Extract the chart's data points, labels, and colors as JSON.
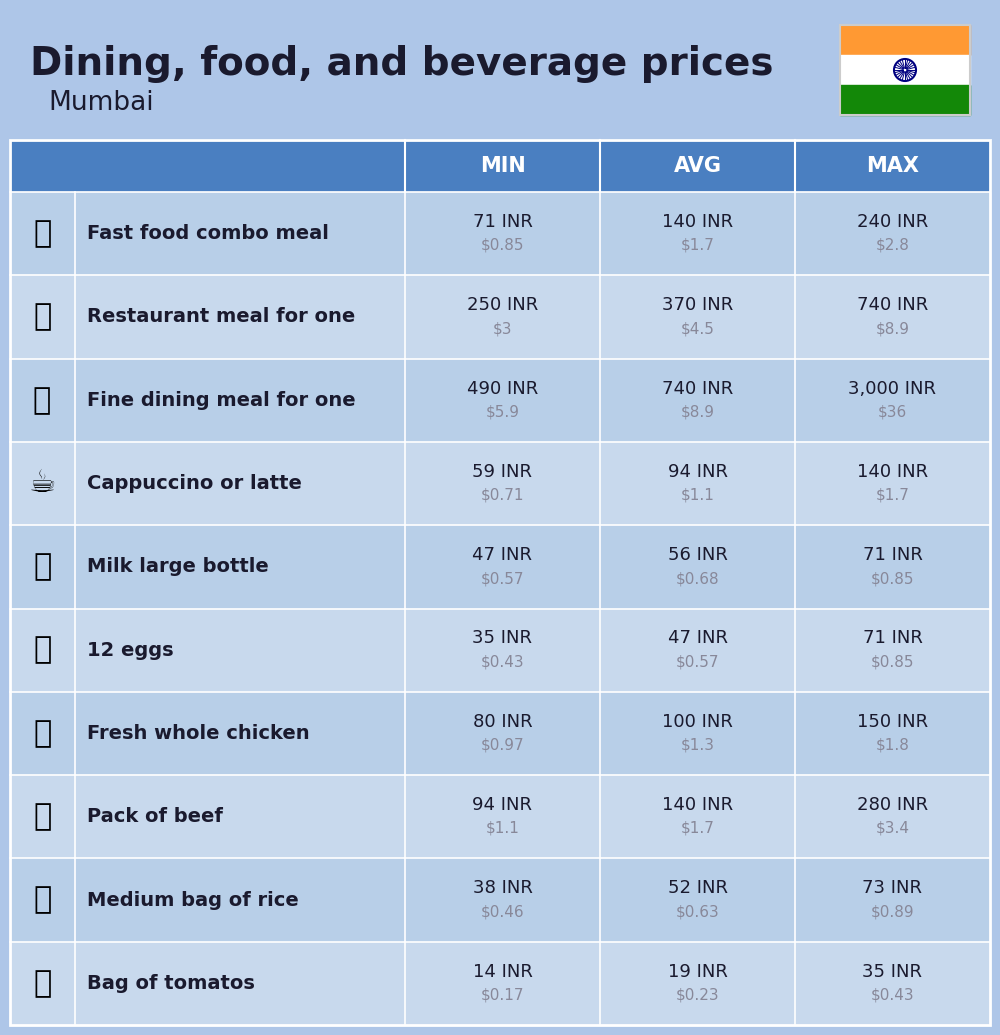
{
  "title": "Dining, food, and beverage prices",
  "subtitle": "Mumbai",
  "background_color": "#aec6e8",
  "header_bg": "#4a7fc1",
  "header_text_color": "#ffffff",
  "row_bg_odd": "#b8cfe8",
  "row_bg_even": "#c8d9ed",
  "col_headers": [
    "MIN",
    "AVG",
    "MAX"
  ],
  "rows": [
    {
      "label": "Fast food combo meal",
      "emoji": "🍔",
      "min_inr": "71 INR",
      "min_usd": "$0.85",
      "avg_inr": "140 INR",
      "avg_usd": "$1.7",
      "max_inr": "240 INR",
      "max_usd": "$2.8"
    },
    {
      "label": "Restaurant meal for one",
      "emoji": "🍳",
      "min_inr": "250 INR",
      "min_usd": "$3",
      "avg_inr": "370 INR",
      "avg_usd": "$4.5",
      "max_inr": "740 INR",
      "max_usd": "$8.9"
    },
    {
      "label": "Fine dining meal for one",
      "emoji": "🍽️",
      "min_inr": "490 INR",
      "min_usd": "$5.9",
      "avg_inr": "740 INR",
      "avg_usd": "$8.9",
      "max_inr": "3,000 INR",
      "max_usd": "$36"
    },
    {
      "label": "Cappuccino or latte",
      "emoji": "☕",
      "min_inr": "59 INR",
      "min_usd": "$0.71",
      "avg_inr": "94 INR",
      "avg_usd": "$1.1",
      "max_inr": "140 INR",
      "max_usd": "$1.7"
    },
    {
      "label": "Milk large bottle",
      "emoji": "🥛",
      "min_inr": "47 INR",
      "min_usd": "$0.57",
      "avg_inr": "56 INR",
      "avg_usd": "$0.68",
      "max_inr": "71 INR",
      "max_usd": "$0.85"
    },
    {
      "label": "12 eggs",
      "emoji": "🥚",
      "min_inr": "35 INR",
      "min_usd": "$0.43",
      "avg_inr": "47 INR",
      "avg_usd": "$0.57",
      "max_inr": "71 INR",
      "max_usd": "$0.85"
    },
    {
      "label": "Fresh whole chicken",
      "emoji": "🐔",
      "min_inr": "80 INR",
      "min_usd": "$0.97",
      "avg_inr": "100 INR",
      "avg_usd": "$1.3",
      "max_inr": "150 INR",
      "max_usd": "$1.8"
    },
    {
      "label": "Pack of beef",
      "emoji": "🥩",
      "min_inr": "94 INR",
      "min_usd": "$1.1",
      "avg_inr": "140 INR",
      "avg_usd": "$1.7",
      "max_inr": "280 INR",
      "max_usd": "$3.4"
    },
    {
      "label": "Medium bag of rice",
      "emoji": "🍚",
      "min_inr": "38 INR",
      "min_usd": "$0.46",
      "avg_inr": "52 INR",
      "avg_usd": "$0.63",
      "max_inr": "73 INR",
      "max_usd": "$0.89"
    },
    {
      "label": "Bag of tomatos",
      "emoji": "🍅",
      "min_inr": "14 INR",
      "min_usd": "$0.17",
      "avg_inr": "19 INR",
      "avg_usd": "$0.23",
      "max_inr": "35 INR",
      "max_usd": "$0.43"
    }
  ],
  "flag_colors": [
    "#FF9933",
    "#FFFFFF",
    "#138808"
  ],
  "flag_chakra_color": "#000080",
  "usd_color": "#888899",
  "text_color": "#1a1a2e",
  "divider_color": "#ffffff"
}
